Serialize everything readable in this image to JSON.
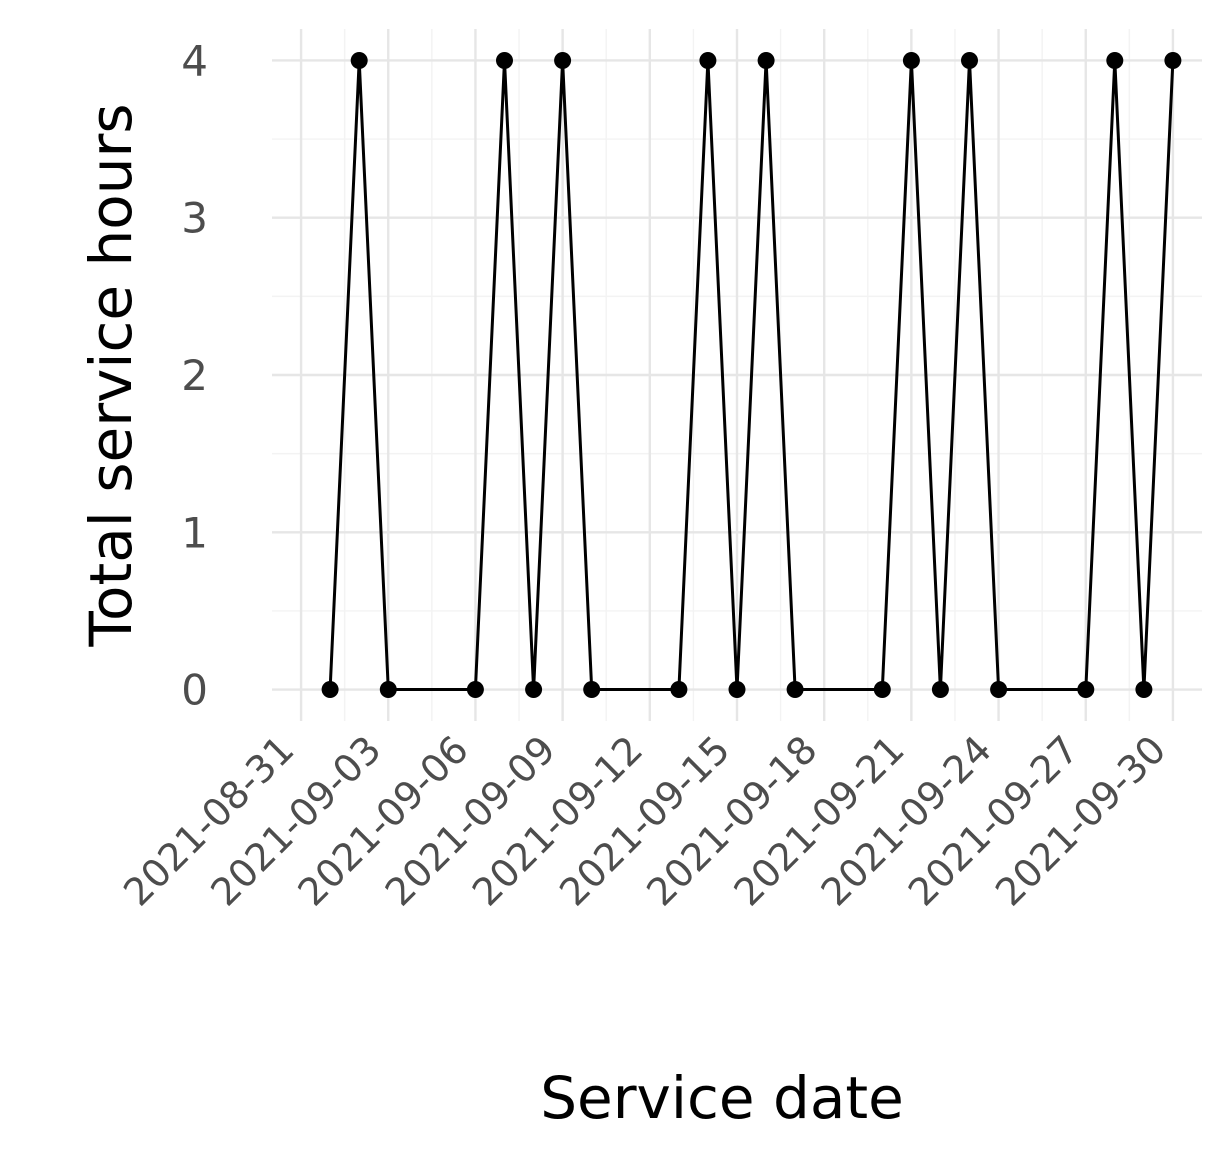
{
  "chart_data": {
    "type": "line",
    "xlabel": "Service date",
    "ylabel": "Total service hours",
    "x_tick_labels": [
      "2021-08-31",
      "2021-09-03",
      "2021-09-06",
      "2021-09-09",
      "2021-09-12",
      "2021-09-15",
      "2021-09-18",
      "2021-09-21",
      "2021-09-24",
      "2021-09-27",
      "2021-09-30"
    ],
    "y_tick_labels": [
      "0",
      "1",
      "2",
      "3",
      "4"
    ],
    "xlim": [
      "2021-08-30",
      "2021-10-01"
    ],
    "ylim": [
      -0.2,
      4.2
    ],
    "grid": true,
    "legend": "none",
    "colors": {
      "series": "#000000",
      "grid_major": "#e6e6e6",
      "grid_minor": "#f3f3f3",
      "tick_text": "#4d4d4d"
    },
    "series": [
      {
        "x": [
          "2021-09-01",
          "2021-09-02",
          "2021-09-03",
          "2021-09-06",
          "2021-09-07",
          "2021-09-08",
          "2021-09-09",
          "2021-09-10",
          "2021-09-13",
          "2021-09-14",
          "2021-09-15",
          "2021-09-16",
          "2021-09-17",
          "2021-09-20",
          "2021-09-21",
          "2021-09-22",
          "2021-09-23",
          "2021-09-24",
          "2021-09-27",
          "2021-09-28",
          "2021-09-29",
          "2021-09-30"
        ],
        "values": [
          0,
          4,
          0,
          0,
          4,
          0,
          4,
          0,
          0,
          4,
          0,
          4,
          0,
          0,
          4,
          0,
          4,
          0,
          0,
          4,
          0,
          4
        ]
      }
    ]
  }
}
